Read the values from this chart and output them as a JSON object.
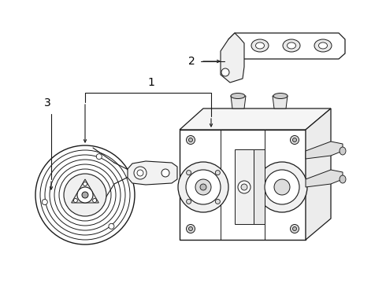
{
  "background_color": "#ffffff",
  "line_color": "#1a1a1a",
  "lw": 0.8,
  "figsize": [
    4.9,
    3.6
  ],
  "dpi": 100,
  "label_1": "1",
  "label_2": "2",
  "label_3": "3"
}
